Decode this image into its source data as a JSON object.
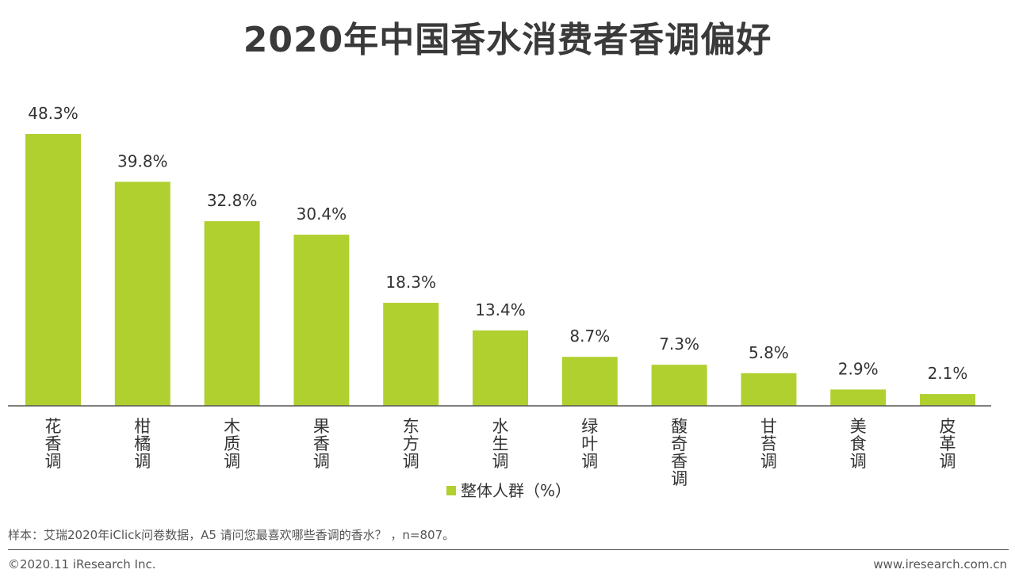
{
  "chart_data": {
    "type": "bar",
    "title": "2020年中国香水消费者香调偏好",
    "categories": [
      "花香调",
      "柑橘调",
      "木质调",
      "果香调",
      "东方调",
      "水生调",
      "绿叶调",
      "馥奇香调",
      "甘苔调",
      "美食调",
      "皮革调"
    ],
    "series": [
      {
        "name": "整体人群（%）",
        "values": [
          48.3,
          39.8,
          32.8,
          30.4,
          18.3,
          13.4,
          8.7,
          7.3,
          5.8,
          2.9,
          2.1
        ],
        "labels": [
          "48.3%",
          "39.8%",
          "32.8%",
          "30.4%",
          "18.3%",
          "13.4%",
          "8.7%",
          "7.3%",
          "5.8%",
          "2.9%",
          "2.1%"
        ],
        "color": "#b0d030"
      }
    ],
    "ylim": [
      0,
      48.3
    ],
    "grid": false,
    "legend": "bottom-center",
    "axis_color": "#555555"
  },
  "footer": {
    "source_note": "样本：艾瑞2020年iClick问卷数据，A5 请问您最喜欢哪些香调的香水？ ，n=807。",
    "copyright": "©2020.11 iResearch Inc.",
    "url": "www.iresearch.com.cn"
  }
}
